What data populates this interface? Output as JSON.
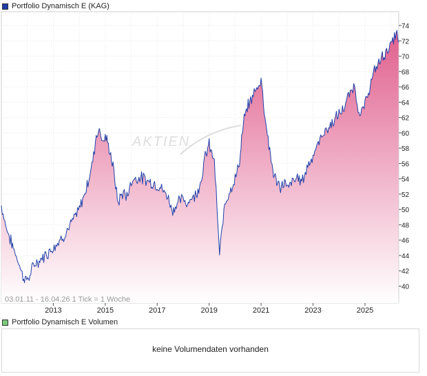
{
  "legend_price": "Portfolio Dynamisch E (KAG)",
  "legend_volume": "Portfolio Dynamisch E Volumen",
  "info_text": "03.01.11 - 16.04.26   1 Tick = 1 Woche",
  "no_volume_text": "keine Volumendaten vorhanden",
  "colors": {
    "line": "#1f3fa8",
    "fill_top": "#e0608e",
    "fill_bottom": "#ffffff",
    "legend_price": "#1f3fa8",
    "legend_volume": "#7cc97c"
  },
  "chart_data": {
    "type": "area",
    "title": "Portfolio Dynamisch E (KAG)",
    "date_range": "03.01.11 - 16.04.26",
    "tick_note": "1 Tick = 1 Woche",
    "x_ticks": [
      "2013",
      "2015",
      "2017",
      "2019",
      "2021",
      "2023",
      "2025"
    ],
    "y_ticks": [
      40,
      42,
      44,
      46,
      48,
      50,
      52,
      54,
      56,
      58,
      60,
      62,
      64,
      66,
      68,
      70,
      72,
      74
    ],
    "x_range": [
      2011.0,
      2026.3
    ],
    "y_range": [
      37.8,
      75.8
    ],
    "x": [
      2011.0,
      2011.2,
      2011.4,
      2011.55,
      2011.7,
      2011.8,
      2011.95,
      2012.1,
      2012.2,
      2012.3,
      2012.45,
      2012.6,
      2012.8,
      2013.0,
      2013.2,
      2013.4,
      2013.6,
      2013.8,
      2014.0,
      2014.2,
      2014.4,
      2014.55,
      2014.65,
      2014.8,
      2014.9,
      2015.0,
      2015.15,
      2015.3,
      2015.4,
      2015.5,
      2015.6,
      2015.7,
      2015.8,
      2015.9,
      2016.0,
      2016.1,
      2016.2,
      2016.3,
      2016.4,
      2016.6,
      2016.8,
      2017.0,
      2017.2,
      2017.4,
      2017.6,
      2017.8,
      2018.0,
      2018.1,
      2018.3,
      2018.5,
      2018.7,
      2018.85,
      2019.0,
      2019.2,
      2019.4,
      2019.6,
      2019.8,
      2020.0,
      2020.1,
      2020.2,
      2020.25,
      2020.35,
      2020.5,
      2020.7,
      2020.9,
      2021.0,
      2021.15,
      2021.3,
      2021.45,
      2021.6,
      2021.75,
      2021.9,
      2022.0,
      2022.2,
      2022.4,
      2022.6,
      2022.8,
      2023.0,
      2023.2,
      2023.4,
      2023.6,
      2023.8,
      2024.0,
      2024.2,
      2024.4,
      2024.6,
      2024.8,
      2025.0,
      2025.2,
      2025.3,
      2025.4,
      2025.6,
      2025.8,
      2026.0,
      2026.1,
      2026.2,
      2026.29
    ],
    "values": [
      50.5,
      47.5,
      45.5,
      44.2,
      42.8,
      41.5,
      40.8,
      41.3,
      42.3,
      43.0,
      43.2,
      43.8,
      44.4,
      45.1,
      45.8,
      46.6,
      47.6,
      48.8,
      50.0,
      52.0,
      54.4,
      57.0,
      59.8,
      60.4,
      58.8,
      59.5,
      58.0,
      55.6,
      53.0,
      50.8,
      51.8,
      52.3,
      51.5,
      52.6,
      53.3,
      54.2,
      53.9,
      54.3,
      54.1,
      53.8,
      53.5,
      53.2,
      52.6,
      51.7,
      49.9,
      50.9,
      51.5,
      50.8,
      51.4,
      52.0,
      54.0,
      57.0,
      58.4,
      56.3,
      44.1,
      50.8,
      52.6,
      53.9,
      55.3,
      57.0,
      59.2,
      61.8,
      63.5,
      65.0,
      66.2,
      67.0,
      62.2,
      58.4,
      55.1,
      53.5,
      52.9,
      53.6,
      52.7,
      53.6,
      54.1,
      53.8,
      55.8,
      57.1,
      58.5,
      60.1,
      60.6,
      61.6,
      62.4,
      63.3,
      65.0,
      66.2,
      62.0,
      63.7,
      66.2,
      67.3,
      68.3,
      69.6,
      70.5,
      71.5,
      72.0,
      73.2,
      71.8
    ]
  }
}
